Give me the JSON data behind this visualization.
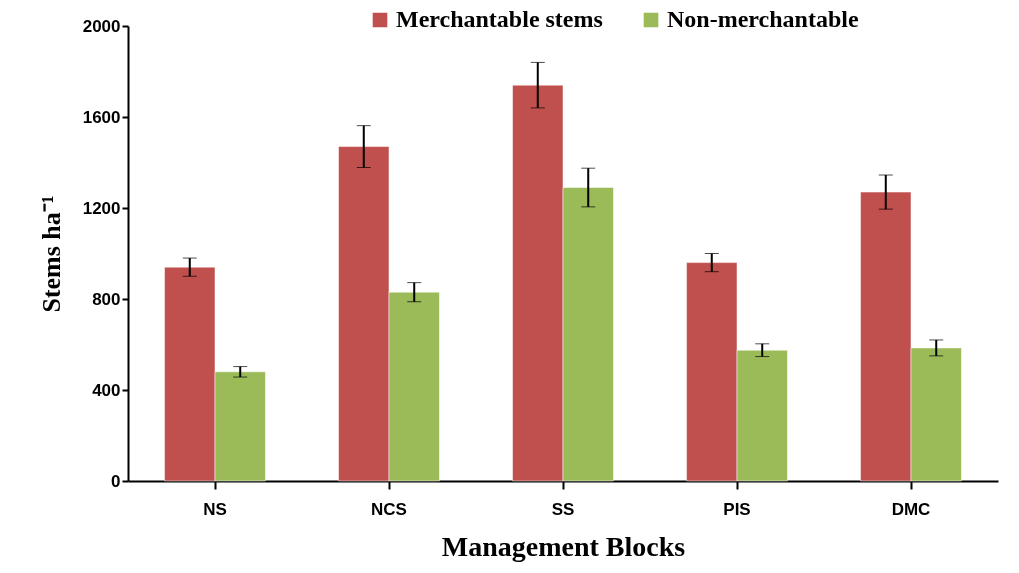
{
  "chart_data": {
    "type": "bar",
    "xlabel": "Management Blocks",
    "ylabel": "Stems ha⁻¹",
    "categories": [
      "NS",
      "NCS",
      "SS",
      "PIS",
      "DMC"
    ],
    "series": [
      {
        "name": "Merchantable stems",
        "color": "#c0504d",
        "values": [
          940,
          1470,
          1740,
          960,
          1270
        ],
        "errors": [
          40,
          92,
          100,
          40,
          75
        ]
      },
      {
        "name": "Non-merchantable",
        "color": "#9bbb59",
        "values": [
          480,
          830,
          1290,
          575,
          585
        ],
        "errors": [
          23,
          42,
          85,
          28,
          35
        ]
      }
    ],
    "ylim": [
      0,
      2000
    ],
    "yticks": [
      0,
      400,
      800,
      1200,
      1600,
      2000
    ],
    "grid": false,
    "legend": "top"
  }
}
